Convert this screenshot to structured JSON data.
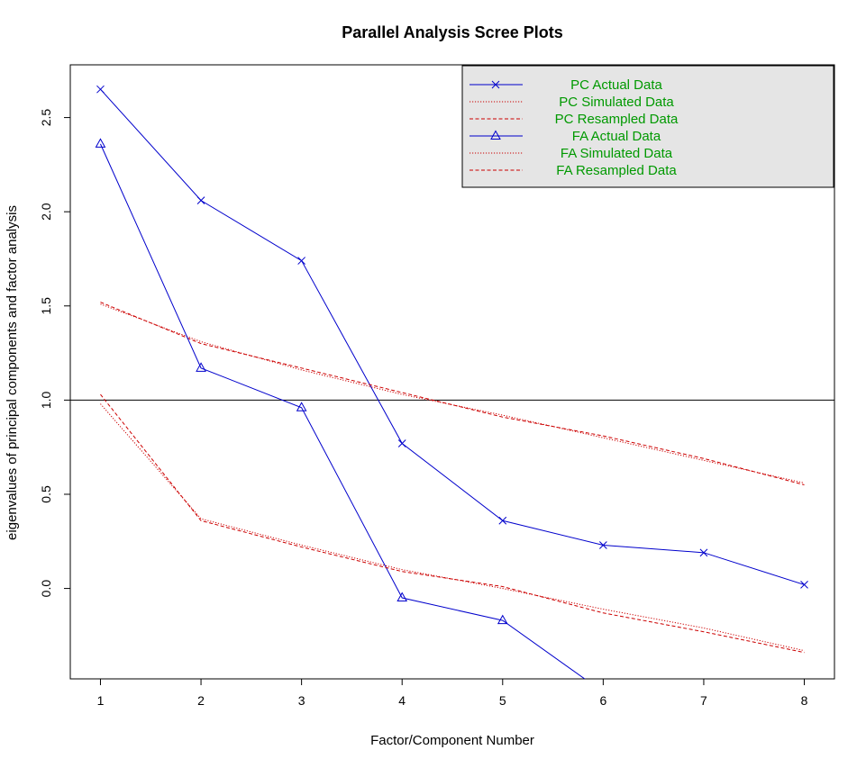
{
  "chart_data": {
    "type": "line",
    "title": "Parallel Analysis Scree Plots",
    "xlabel": "Factor/Component Number",
    "ylabel": "eigenvalues of principal components and factor analysis",
    "x": [
      1,
      2,
      3,
      4,
      5,
      6,
      7,
      8
    ],
    "xlim": [
      0.7,
      8.3
    ],
    "ylim": [
      -0.48,
      2.78
    ],
    "x_ticks": [
      "1",
      "2",
      "3",
      "4",
      "5",
      "6",
      "7",
      "8"
    ],
    "y_ticks": [
      "0.0",
      "0.5",
      "1.0",
      "1.5",
      "2.0",
      "2.5"
    ],
    "reference_line": {
      "y": 1.0,
      "color": "#000000"
    },
    "grid": false,
    "legend_position": "top-right",
    "series": [
      {
        "name": "PC  Actual Data",
        "values": [
          2.65,
          2.06,
          1.74,
          0.77,
          0.36,
          0.23,
          0.19,
          0.02
        ],
        "color": "#0000cc",
        "line_style": "solid",
        "marker": "x"
      },
      {
        "name": "PC  Simulated Data",
        "values": [
          1.51,
          1.31,
          1.16,
          1.03,
          0.92,
          0.8,
          0.68,
          0.56
        ],
        "color": "#cc0000",
        "line_style": "dotted",
        "marker": "none"
      },
      {
        "name": "PC  Resampled Data",
        "values": [
          1.52,
          1.3,
          1.17,
          1.04,
          0.91,
          0.81,
          0.69,
          0.55
        ],
        "color": "#cc0000",
        "line_style": "dashed",
        "marker": "none"
      },
      {
        "name": "FA  Actual Data",
        "values": [
          2.36,
          1.17,
          0.96,
          -0.05,
          -0.17,
          -0.55,
          null,
          null
        ],
        "color": "#0000cc",
        "line_style": "solid",
        "marker": "triangle"
      },
      {
        "name": "FA  Simulated Data",
        "values": [
          0.98,
          0.37,
          0.23,
          0.1,
          0.0,
          -0.11,
          -0.21,
          -0.33
        ],
        "color": "#cc0000",
        "line_style": "dotted",
        "marker": "none"
      },
      {
        "name": "FA  Resampled Data",
        "values": [
          1.03,
          0.36,
          0.22,
          0.09,
          0.01,
          -0.13,
          -0.23,
          -0.34
        ],
        "color": "#cc0000",
        "line_style": "dashed",
        "marker": "none"
      }
    ],
    "legend": {
      "background": "#e5e5e5",
      "text_color": "#009900"
    }
  }
}
